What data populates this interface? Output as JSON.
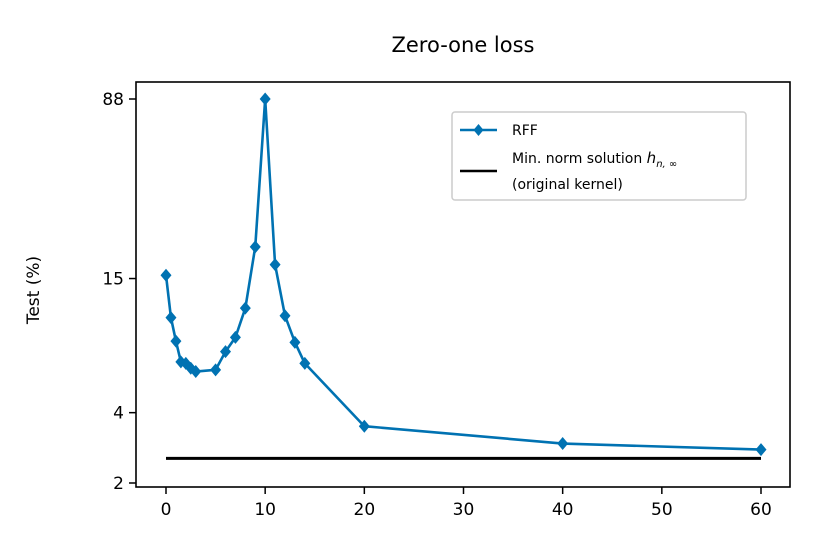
{
  "chart_data": {
    "type": "line",
    "title": "Zero-one loss",
    "xlabel": "",
    "ylabel": "Test (%)",
    "xlim": [
      -1.5,
      63
    ],
    "ylim": [
      2,
      88
    ],
    "y_scale": "log",
    "x_ticks": [
      0,
      10,
      20,
      30,
      40,
      50,
      60
    ],
    "y_ticks": [
      2,
      4,
      15,
      88
    ],
    "grid": false,
    "legend_position": "top-right",
    "colors": {
      "series": "#0072b2",
      "reference": "#000000"
    },
    "series": [
      {
        "name": "RFF",
        "marker": "diamond",
        "x": [
          0,
          0.5,
          1,
          1.5,
          2,
          2.5,
          3,
          5,
          6,
          7,
          8,
          9,
          10,
          11,
          12,
          13,
          14,
          20,
          40,
          60
        ],
        "y": [
          15.5,
          10.2,
          8.1,
          6.6,
          6.5,
          6.2,
          6.0,
          6.1,
          7.3,
          8.4,
          11.2,
          20.5,
          88,
          17.2,
          10.4,
          8.0,
          6.5,
          3.5,
          2.95,
          2.78
        ]
      },
      {
        "name": "Min. norm solution h_{n,∞}",
        "name_line2": "(original kernel)",
        "x": [
          0,
          60
        ],
        "y": [
          2.55,
          2.55
        ]
      }
    ],
    "legend": {
      "rff": "RFF",
      "min_norm_prefix": "Min. norm solution ",
      "min_norm_italic": "h",
      "min_norm_sub": "n, ∞",
      "min_norm_line2": "(original kernel)"
    }
  }
}
